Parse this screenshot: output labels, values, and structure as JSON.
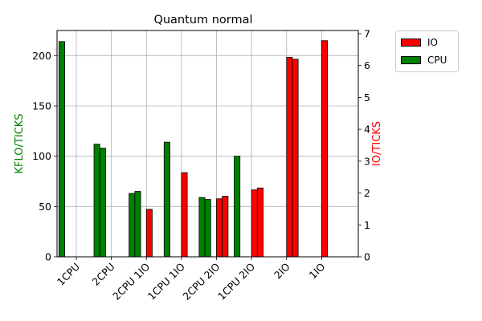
{
  "chart_data": {
    "type": "bar",
    "title": "Quantum normal",
    "categories": [
      "1CPU",
      "2CPU",
      "2CPU 1IO",
      "1CPU 1IO",
      "2CPU 2IO",
      "1CPU 2IO",
      "2IO",
      "1IO"
    ],
    "ylabel_left": "KFLO/TICKS",
    "ylabel_right": "IO/TICKS",
    "ylim_left": [
      0,
      225
    ],
    "ylim_right": [
      0,
      7.1
    ],
    "yticks_left": [
      0,
      50,
      100,
      150,
      200
    ],
    "yticks_right": [
      0,
      1,
      2,
      3,
      4,
      5,
      6,
      7
    ],
    "grid": true,
    "legend_position": "outside-top-right",
    "series": [
      {
        "name": "CPU",
        "axis": "left",
        "color": "#008000",
        "values": [
          [
            214,
            0
          ],
          [
            112,
            108
          ],
          [
            63,
            65
          ],
          [
            114,
            0
          ],
          [
            59,
            57
          ],
          [
            100,
            0
          ],
          [
            0,
            0
          ],
          [
            0,
            0
          ]
        ]
      },
      {
        "name": "IO",
        "axis": "right",
        "color": "#ff0000",
        "values": [
          [
            0,
            0
          ],
          [
            0,
            0
          ],
          [
            1.49,
            0
          ],
          [
            2.64,
            0
          ],
          [
            1.82,
            1.9
          ],
          [
            2.1,
            2.16
          ],
          [
            6.26,
            6.2
          ],
          [
            6.78,
            0
          ]
        ]
      }
    ]
  },
  "legend": {
    "items": [
      {
        "label": "IO",
        "color": "#ff0000"
      },
      {
        "label": "CPU",
        "color": "#008000"
      }
    ]
  }
}
